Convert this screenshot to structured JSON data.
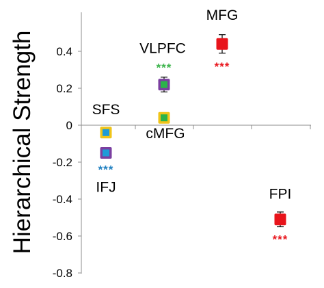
{
  "chart_data": {
    "type": "scatter",
    "ylabel": "Hierarchical Strength",
    "ylim": [
      -0.8,
      0.5
    ],
    "yticks": [
      "0.4",
      "0.2",
      "0",
      "-0.2",
      "-0.4",
      "-0.6",
      "-0.8"
    ],
    "ytick_values": [
      0.4,
      0.2,
      0,
      -0.2,
      -0.4,
      -0.6,
      -0.8
    ],
    "grid": false,
    "points": [
      {
        "label": "SFS",
        "x": 1,
        "y": -0.04,
        "err": 0,
        "fill": "#1E9BD7",
        "edge": "#F0C419",
        "sig": ""
      },
      {
        "label": "IFJ",
        "x": 1,
        "y": -0.15,
        "err": 0,
        "fill": "#1E9BD7",
        "edge": "#7B3FA0",
        "sig": "***",
        "sig_color": "#1E7FC0"
      },
      {
        "label": "VLPFC",
        "x": 2,
        "y": 0.22,
        "err": 0.04,
        "fill": "#2BB34A",
        "edge": "#7B3FA0",
        "sig": "***",
        "sig_color": "#3CB44B"
      },
      {
        "label": "cMFG",
        "x": 2,
        "y": 0.04,
        "err": 0,
        "fill": "#2BB34A",
        "edge": "#F0C419",
        "sig": ""
      },
      {
        "label": "MFG",
        "x": 3,
        "y": 0.44,
        "err": 0.05,
        "fill": "#E8141B",
        "edge": "#E8141B",
        "sig": "***",
        "sig_color": "#E8141B"
      },
      {
        "label": "FPI",
        "x": 4,
        "y": -0.51,
        "err": 0.04,
        "fill": "#E8141B",
        "edge": "#E8141B",
        "sig": "***",
        "sig_color": "#E8141B"
      }
    ]
  }
}
